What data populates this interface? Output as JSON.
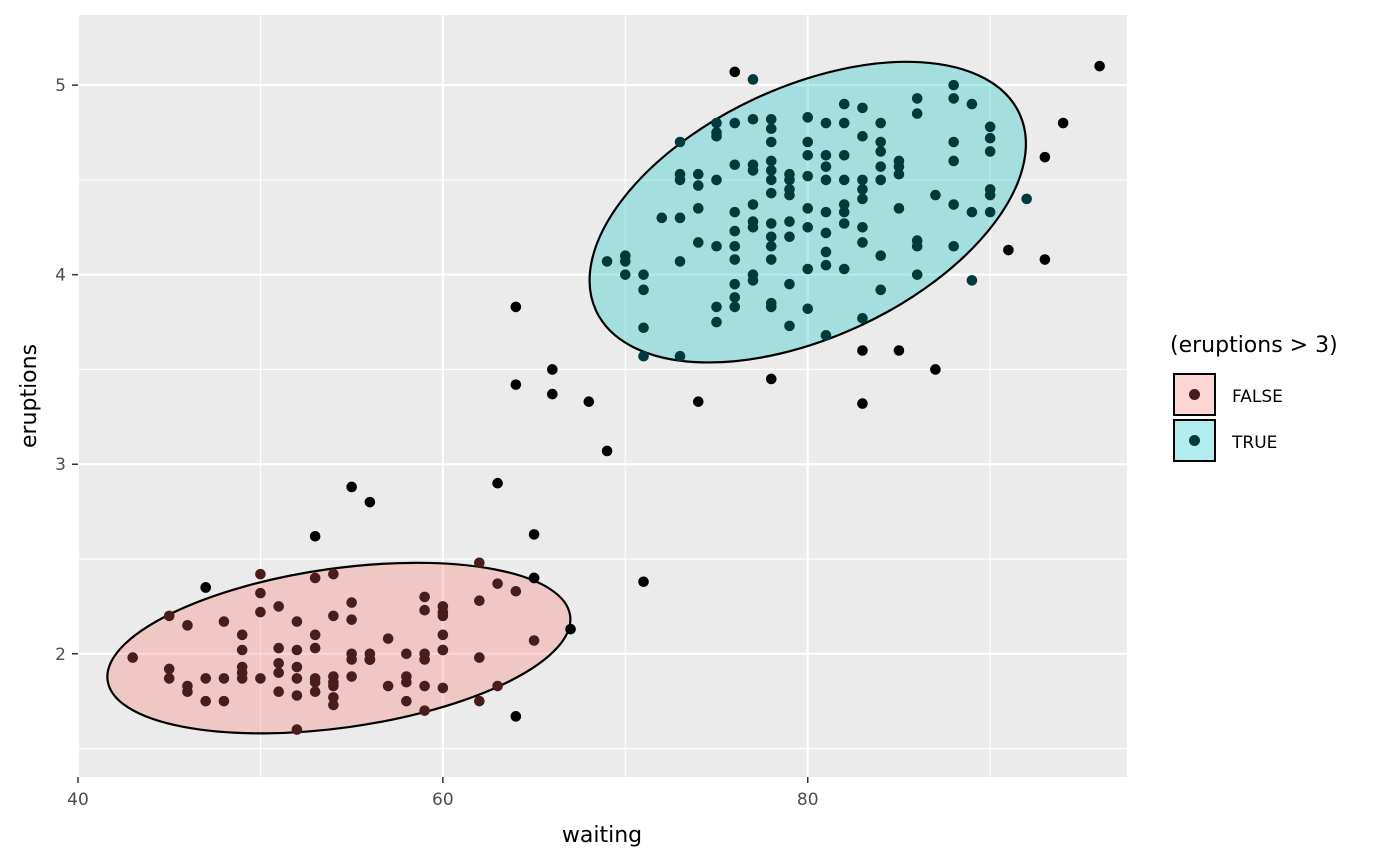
{
  "chart_data": {
    "type": "scatter",
    "title": "",
    "xlabel": "waiting",
    "ylabel": "eruptions",
    "xlim": [
      40.0,
      97.5
    ],
    "ylim": [
      1.35,
      5.37
    ],
    "x_ticks": [
      40,
      60,
      80
    ],
    "y_ticks": [
      2,
      3,
      4,
      5
    ],
    "x_tick_labels": [
      "40",
      "60",
      "80"
    ],
    "y_tick_labels": [
      "2",
      "3",
      "4",
      "5"
    ],
    "grid": true,
    "legend": {
      "title": "(eruptions > 3)",
      "placement": "right",
      "entries": [
        {
          "label": "FALSE",
          "fill": "#f8766d",
          "point": "#4a1c1c"
        },
        {
          "label": "TRUE",
          "fill": "#00bfc4",
          "point": "#003a3c"
        }
      ]
    },
    "ellipses": [
      {
        "group": "FALSE",
        "center": [
          54.3,
          2.03
        ],
        "semi_x": 12.8,
        "semi_y": 0.42,
        "angle_deg": -8
      },
      {
        "group": "TRUE",
        "center": [
          80.0,
          4.33
        ],
        "semi_x": 12.8,
        "semi_y": 0.66,
        "angle_deg": -25
      }
    ],
    "series": [
      {
        "name": "FALSE",
        "color": "#4a1c1c",
        "x": [
          43,
          45,
          45,
          45,
          46,
          46,
          46,
          47,
          47,
          47,
          48,
          48,
          48,
          49,
          49,
          49,
          49,
          49,
          50,
          50,
          50,
          50,
          51,
          51,
          51,
          51,
          51,
          52,
          52,
          52,
          52,
          52,
          52,
          53,
          53,
          53,
          53,
          53,
          53,
          54,
          54,
          54,
          54,
          54,
          54,
          54,
          55,
          55,
          55,
          55,
          55,
          56,
          56,
          56,
          56,
          56,
          56,
          57,
          57,
          58,
          58,
          58,
          58,
          59,
          59,
          59,
          59,
          59,
          59,
          60,
          60,
          60,
          60,
          60,
          60,
          60,
          62,
          62,
          62,
          62,
          63,
          63,
          64,
          65,
          65
        ],
        "y": [
          1.98,
          2.2,
          1.92,
          1.87,
          2.15,
          1.83,
          1.8,
          2.35,
          1.87,
          1.75,
          2.17,
          1.87,
          1.75,
          2.1,
          2.02,
          1.93,
          1.9,
          1.87,
          2.42,
          2.32,
          2.22,
          1.87,
          2.25,
          2.03,
          1.95,
          1.9,
          1.8,
          2.17,
          2.02,
          1.93,
          1.87,
          1.78,
          1.6,
          2.4,
          2.1,
          2.03,
          1.87,
          1.85,
          1.8,
          2.42,
          2.2,
          1.88,
          1.85,
          1.83,
          1.77,
          1.73,
          2.27,
          2.18,
          2.0,
          1.97,
          1.88,
          2.0,
          1.97,
          1.97,
          1.97,
          1.97,
          1.97,
          2.08,
          1.83,
          2.0,
          1.88,
          1.85,
          1.75,
          2.3,
          2.23,
          2.0,
          1.97,
          1.83,
          1.7,
          2.25,
          2.22,
          2.2,
          2.1,
          2.02,
          2.02,
          1.82,
          2.48,
          2.28,
          1.98,
          1.75,
          2.37,
          1.83,
          2.33,
          2.07,
          2.4
        ]
      },
      {
        "name": "TRUE",
        "color": "#003a3c",
        "x": [
          69,
          70,
          70,
          70,
          71,
          71,
          71,
          71,
          72,
          73,
          73,
          73,
          73,
          73,
          73,
          74,
          74,
          74,
          74,
          75,
          75,
          75,
          75,
          75,
          75,
          75,
          76,
          76,
          76,
          76,
          76,
          76,
          76,
          76,
          76,
          77,
          77,
          77,
          77,
          77,
          77,
          77,
          77,
          77,
          78,
          78,
          78,
          78,
          78,
          78,
          78,
          78,
          78,
          78,
          78,
          78,
          78,
          79,
          79,
          79,
          79,
          79,
          79,
          79,
          79,
          80,
          80,
          80,
          80,
          80,
          80,
          80,
          80,
          81,
          81,
          81,
          81,
          81,
          81,
          81,
          81,
          81,
          82,
          82,
          82,
          82,
          82,
          82,
          82,
          82,
          83,
          83,
          83,
          83,
          83,
          83,
          83,
          83,
          84,
          84,
          84,
          84,
          84,
          84,
          84,
          85,
          85,
          85,
          85,
          86,
          86,
          86,
          86,
          86,
          87,
          88,
          88,
          88,
          88,
          88,
          88,
          89,
          89,
          89,
          90,
          90,
          90,
          90,
          90,
          90,
          92
        ],
        "y": [
          4.07,
          4.1,
          4.07,
          4.0,
          4.0,
          3.92,
          3.72,
          3.57,
          4.3,
          4.7,
          4.53,
          4.5,
          4.3,
          4.07,
          3.57,
          4.53,
          4.47,
          4.35,
          4.17,
          4.8,
          4.75,
          4.73,
          4.5,
          4.15,
          3.83,
          3.75,
          4.8,
          4.58,
          4.33,
          4.23,
          4.15,
          4.08,
          3.95,
          3.88,
          3.83,
          5.03,
          4.82,
          4.58,
          4.55,
          4.37,
          4.28,
          4.25,
          4.0,
          3.97,
          4.82,
          4.77,
          4.7,
          4.6,
          4.55,
          4.5,
          4.43,
          4.27,
          4.2,
          4.15,
          4.08,
          3.85,
          3.83,
          4.53,
          4.5,
          4.45,
          4.42,
          4.28,
          4.2,
          3.95,
          3.73,
          4.83,
          4.7,
          4.63,
          4.52,
          4.35,
          4.25,
          4.03,
          3.82,
          4.8,
          4.63,
          4.57,
          4.5,
          4.33,
          4.22,
          4.12,
          4.05,
          3.68,
          4.9,
          4.8,
          4.63,
          4.5,
          4.37,
          4.33,
          4.27,
          4.03,
          4.88,
          4.73,
          4.5,
          4.45,
          4.4,
          4.25,
          4.17,
          3.77,
          4.8,
          4.7,
          4.65,
          4.57,
          4.5,
          4.1,
          3.92,
          4.6,
          4.57,
          4.53,
          4.35,
          4.93,
          4.85,
          4.18,
          4.15,
          4.0,
          4.42,
          5.0,
          4.93,
          4.7,
          4.6,
          4.37,
          4.15,
          4.9,
          4.33,
          3.97,
          4.78,
          4.72,
          4.65,
          4.45,
          4.42,
          4.33,
          4.4
        ]
      },
      {
        "name": "",
        "color": "#000000",
        "x": [
          47,
          53,
          55,
          56,
          63,
          64,
          64,
          64,
          65,
          65,
          66,
          66,
          67,
          68,
          69,
          71,
          74,
          76,
          78,
          83,
          83,
          85,
          87,
          91,
          93,
          93,
          94,
          96
        ],
        "y": [
          2.35,
          2.62,
          2.88,
          2.8,
          2.9,
          3.83,
          3.42,
          1.67,
          2.63,
          2.4,
          3.5,
          3.37,
          2.13,
          3.33,
          3.07,
          2.38,
          3.33,
          5.07,
          3.45,
          3.6,
          3.32,
          3.6,
          3.5,
          4.13,
          4.62,
          4.08,
          4.8,
          5.1
        ]
      }
    ]
  }
}
